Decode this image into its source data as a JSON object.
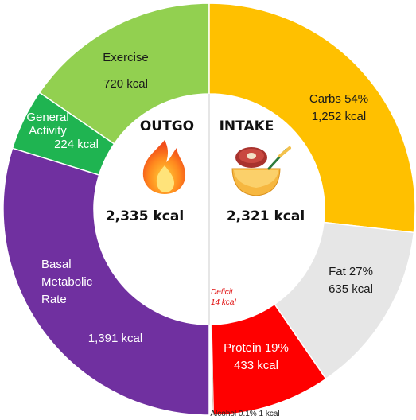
{
  "chart_data": {
    "type": "pie",
    "variant": "donut",
    "outgo": {
      "title": "OUTGO",
      "total_label": "2,335 kcal",
      "total_kcal": 2335,
      "segments": [
        {
          "name": "Exercise",
          "kcal": 720,
          "lines": [
            "Exercise",
            "720 kcal"
          ],
          "color": "#92d050"
        },
        {
          "name": "General Activity",
          "kcal": 224,
          "lines": [
            "General",
            "Activity",
            "224 kcal"
          ],
          "color": "#1fb451"
        },
        {
          "name": "Basal Metabolic Rate",
          "kcal": 1391,
          "lines": [
            "Basal",
            "Metabolic",
            "Rate",
            "1,391 kcal"
          ],
          "color": "#7030a0"
        }
      ]
    },
    "intake": {
      "title": "INTAKE",
      "total_label": "2,321 kcal",
      "total_kcal": 2321,
      "segments": [
        {
          "name": "Carbs",
          "percent": 54,
          "kcal": 1252,
          "lines": [
            "Carbs 54%",
            "1,252 kcal"
          ],
          "color": "#ffc000"
        },
        {
          "name": "Fat",
          "percent": 27,
          "kcal": 635,
          "lines": [
            "Fat 27%",
            "635 kcal"
          ],
          "color": "#e6e6e6"
        },
        {
          "name": "Protein",
          "percent": 19,
          "kcal": 433,
          "lines": [
            "Protein 19%",
            "433 kcal"
          ],
          "color": "#ff0000"
        },
        {
          "name": "Alcohol",
          "percent": 0.1,
          "kcal": 1,
          "lines": [
            "Alcohol 0.1% 1 kcal"
          ],
          "color": "#8b5a2b"
        },
        {
          "name": "Deficit",
          "kcal": 14,
          "lines": [
            "Deficit",
            "14 kcal"
          ],
          "color": "#ffffff"
        }
      ]
    },
    "icons": {
      "outgo": "flame-icon",
      "intake": "steak-bowl-icon"
    },
    "legend": "none"
  }
}
